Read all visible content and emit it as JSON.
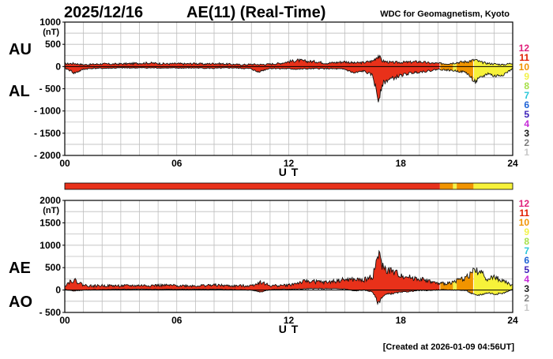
{
  "header": {
    "date": "2025/12/16",
    "title": "AE(11) (Real-Time)",
    "source": "WDC for Geomagnetism, Kyoto"
  },
  "footer": {
    "created": "[Created at 2026-01-09 04:56UT]"
  },
  "legend": {
    "levels": [
      {
        "label": "12",
        "color": "#e0207a"
      },
      {
        "label": "11",
        "color": "#e11d00"
      },
      {
        "label": "10",
        "color": "#f19400"
      },
      {
        "label": "9",
        "color": "#f2f24a"
      },
      {
        "label": "8",
        "color": "#a7e04a"
      },
      {
        "label": "7",
        "color": "#29c7d9"
      },
      {
        "label": "6",
        "color": "#1e63d6"
      },
      {
        "label": "5",
        "color": "#3b1fb8"
      },
      {
        "label": "4",
        "color": "#c62bd8"
      },
      {
        "label": "3",
        "color": "#1a1a1a"
      },
      {
        "label": "2",
        "color": "#7d7d7d"
      },
      {
        "label": "1",
        "color": "#c8c8c8"
      }
    ]
  },
  "status_bar": {
    "segments": [
      {
        "from": 0,
        "to": 20.1,
        "color": "#e8311a"
      },
      {
        "from": 20.1,
        "to": 20.8,
        "color": "#f19400"
      },
      {
        "from": 20.8,
        "to": 21.0,
        "color": "#f2f24a"
      },
      {
        "from": 21.0,
        "to": 21.9,
        "color": "#f19400"
      },
      {
        "from": 21.9,
        "to": 24,
        "color": "#f7f23a"
      }
    ]
  },
  "chart_data": [
    {
      "type": "area",
      "side_labels": [
        "AU",
        "AL"
      ],
      "unit": "(nT)",
      "xlabel": "U T",
      "xlim": [
        0,
        24
      ],
      "ylim": [
        -2000,
        1000
      ],
      "yticks": [
        1000,
        500,
        0,
        -500,
        -1000,
        -1500,
        -2000
      ],
      "ytick_labels": [
        "1000",
        "500",
        "0",
        "- 500",
        "- 1000",
        "- 1500",
        "- 2000"
      ],
      "xticks": [
        0,
        6,
        12,
        18,
        24
      ],
      "xtick_labels": [
        "00",
        "06",
        "12",
        "18",
        "24"
      ],
      "grid": true,
      "series": [
        {
          "name": "AU",
          "x": [
            0,
            0.5,
            1,
            1.5,
            2,
            2.5,
            3,
            3.5,
            4,
            4.5,
            5,
            5.5,
            6,
            6.5,
            7,
            7.5,
            8,
            8.5,
            9,
            9.5,
            10,
            10.5,
            11,
            11.5,
            12,
            12.5,
            13,
            13.5,
            14,
            14.5,
            15,
            15.5,
            16,
            16.5,
            16.8,
            17,
            17.2,
            17.5,
            18,
            18.5,
            19,
            19.5,
            20,
            20.5,
            21,
            21.5,
            22,
            22.3,
            22.7,
            23,
            23.5,
            24
          ],
          "values": [
            60,
            70,
            40,
            50,
            60,
            55,
            60,
            65,
            75,
            80,
            70,
            60,
            65,
            60,
            70,
            55,
            70,
            60,
            50,
            40,
            50,
            45,
            55,
            70,
            110,
            140,
            115,
            110,
            75,
            90,
            110,
            80,
            90,
            125,
            250,
            130,
            110,
            90,
            95,
            100,
            110,
            80,
            70,
            65,
            90,
            110,
            150,
            95,
            70,
            60,
            40,
            80
          ]
        },
        {
          "name": "AL",
          "x": [
            0,
            0.3,
            0.5,
            0.8,
            1,
            1.5,
            2,
            3,
            4,
            5,
            6,
            7,
            8,
            9,
            10,
            10.3,
            10.5,
            11,
            12,
            12.5,
            13,
            14,
            15,
            15.5,
            16,
            16.5,
            16.8,
            17,
            17.3,
            17.7,
            18,
            18.5,
            19,
            19.5,
            20,
            20.5,
            21,
            21.5,
            22,
            22.3,
            22.7,
            23,
            23.5,
            24
          ],
          "values": [
            -40,
            -90,
            -150,
            -100,
            -60,
            -40,
            -40,
            -30,
            -30,
            -30,
            -35,
            -30,
            -40,
            -30,
            -50,
            -120,
            -100,
            -40,
            -50,
            -60,
            -50,
            -45,
            -60,
            -150,
            -100,
            -200,
            -750,
            -400,
            -300,
            -250,
            -200,
            -150,
            -120,
            -100,
            -60,
            -80,
            -100,
            -130,
            -350,
            -250,
            -150,
            -220,
            -180,
            -50
          ]
        }
      ]
    },
    {
      "type": "area",
      "side_labels": [
        "AE",
        "AO"
      ],
      "unit": "(nT)",
      "xlabel": "U T",
      "xlim": [
        0,
        24
      ],
      "ylim": [
        -500,
        2000
      ],
      "yticks": [
        2000,
        1500,
        1000,
        500,
        0,
        -500
      ],
      "ytick_labels": [
        "2000",
        "1500",
        "1000",
        "500",
        "0",
        "- 500"
      ],
      "xticks": [
        0,
        6,
        12,
        18,
        24
      ],
      "xtick_labels": [
        "00",
        "06",
        "12",
        "18",
        "24"
      ],
      "grid": true,
      "series": [
        {
          "name": "AE",
          "x": [
            0,
            0.3,
            0.5,
            0.8,
            1,
            1.5,
            2,
            3,
            4,
            5,
            6,
            7,
            8,
            9,
            10,
            10.5,
            11,
            12,
            12.5,
            13,
            14,
            15,
            15.5,
            16,
            16.5,
            16.8,
            17,
            17.2,
            17.5,
            18,
            18.5,
            19,
            19.5,
            20,
            20.5,
            21,
            21.5,
            22,
            22.3,
            22.7,
            23,
            23.5,
            24
          ],
          "values": [
            100,
            200,
            220,
            160,
            110,
            90,
            100,
            95,
            100,
            105,
            100,
            95,
            110,
            90,
            100,
            180,
            95,
            110,
            160,
            200,
            170,
            230,
            230,
            220,
            300,
            800,
            550,
            450,
            420,
            330,
            280,
            250,
            200,
            140,
            150,
            210,
            280,
            450,
            380,
            240,
            290,
            200,
            100
          ]
        },
        {
          "name": "AO",
          "x": [
            0,
            0.5,
            1,
            2,
            3,
            4,
            5,
            6,
            7,
            8,
            9,
            10,
            10.5,
            11,
            12,
            12.5,
            13,
            14,
            15,
            15.5,
            16,
            16.5,
            16.8,
            17,
            17.2,
            17.5,
            18,
            18.5,
            19,
            19.5,
            20,
            20.5,
            21,
            21.5,
            22,
            22.3,
            22.7,
            23,
            23.5,
            24
          ],
          "values": [
            10,
            -20,
            0,
            10,
            15,
            20,
            15,
            15,
            15,
            15,
            10,
            0,
            -40,
            10,
            20,
            20,
            30,
            30,
            25,
            -20,
            0,
            -40,
            -300,
            -150,
            -100,
            -80,
            -50,
            -30,
            -10,
            -10,
            5,
            5,
            0,
            -10,
            -120,
            -100,
            -60,
            -90,
            -70,
            20
          ]
        }
      ]
    }
  ]
}
